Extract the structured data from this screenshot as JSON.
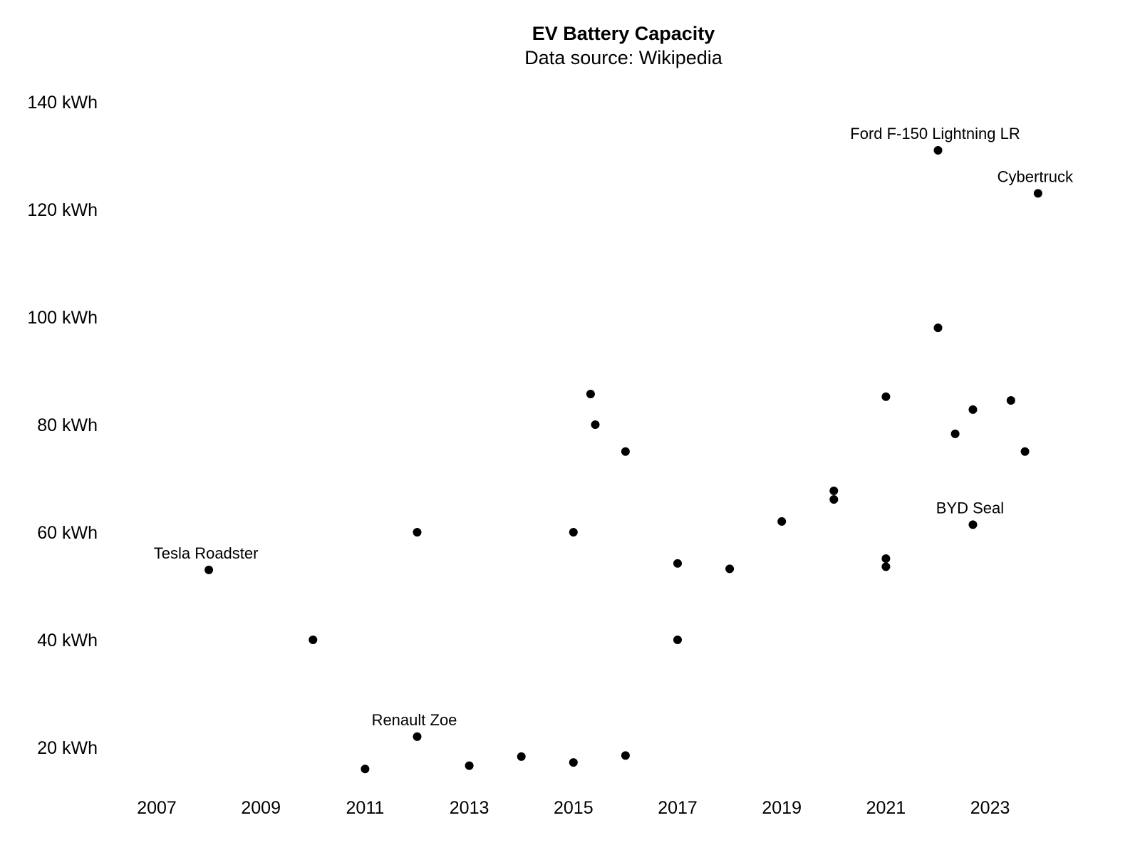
{
  "chart_data": {
    "type": "scatter",
    "title": "EV Battery Capacity",
    "subtitle": "Data source: Wikipedia",
    "xlabel": "",
    "ylabel": "",
    "x_ticks": [
      "2007",
      "2009",
      "2011",
      "2013",
      "2015",
      "2017",
      "2019",
      "2021",
      "2023"
    ],
    "y_ticks": [
      "20 kWh",
      "40 kWh",
      "60 kWh",
      "80 kWh",
      "100 kWh",
      "120 kWh",
      "140 kWh"
    ],
    "xlim": [
      2006.8,
      2024.4
    ],
    "ylim": [
      14,
      142
    ],
    "grid": false,
    "legend": "none",
    "marker_color": "#000000",
    "points": [
      {
        "x": 2008.0,
        "y": 53,
        "label": "Tesla Roadster"
      },
      {
        "x": 2010.0,
        "y": 40
      },
      {
        "x": 2011.0,
        "y": 16
      },
      {
        "x": 2012.0,
        "y": 60
      },
      {
        "x": 2012.0,
        "y": 22,
        "label": "Renault Zoe"
      },
      {
        "x": 2013.0,
        "y": 16.6
      },
      {
        "x": 2014.0,
        "y": 18.3
      },
      {
        "x": 2015.0,
        "y": 60
      },
      {
        "x": 2015.0,
        "y": 17.2
      },
      {
        "x": 2015.33,
        "y": 85.7
      },
      {
        "x": 2015.42,
        "y": 80
      },
      {
        "x": 2016.0,
        "y": 75
      },
      {
        "x": 2016.0,
        "y": 18.5
      },
      {
        "x": 2017.0,
        "y": 54.2
      },
      {
        "x": 2017.0,
        "y": 40
      },
      {
        "x": 2018.0,
        "y": 53.2
      },
      {
        "x": 2019.0,
        "y": 62
      },
      {
        "x": 2020.0,
        "y": 67.7
      },
      {
        "x": 2020.0,
        "y": 66.1
      },
      {
        "x": 2021.0,
        "y": 85.2
      },
      {
        "x": 2021.0,
        "y": 55.1
      },
      {
        "x": 2021.0,
        "y": 53.6
      },
      {
        "x": 2022.0,
        "y": 131,
        "label": "Ford F-150 Lightning LR"
      },
      {
        "x": 2022.0,
        "y": 98
      },
      {
        "x": 2022.33,
        "y": 78.3
      },
      {
        "x": 2022.67,
        "y": 82.8
      },
      {
        "x": 2022.67,
        "y": 61.4,
        "label": "BYD Seal"
      },
      {
        "x": 2023.4,
        "y": 84.5
      },
      {
        "x": 2023.67,
        "y": 75
      },
      {
        "x": 2023.92,
        "y": 123,
        "label": "Cybertruck"
      }
    ]
  }
}
